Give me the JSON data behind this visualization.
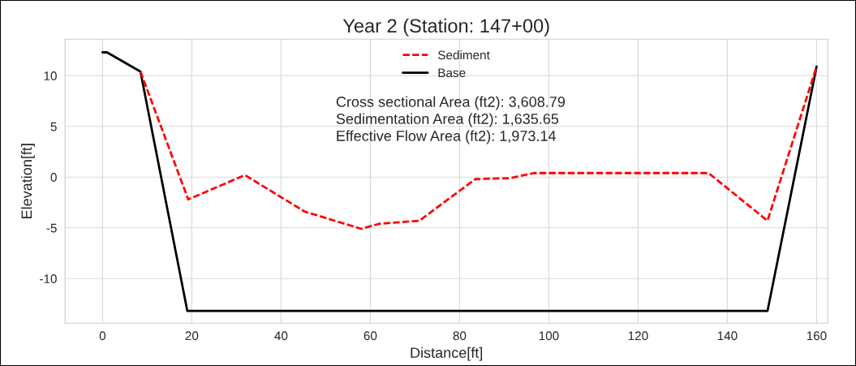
{
  "chart_data": {
    "type": "line",
    "title": "Year 2 (Station: 147+00)",
    "xlabel": "Distance[ft]",
    "ylabel": "Elevation[ft]",
    "series": [
      {
        "name": "Sediment",
        "color": "#ff0000",
        "line_style": "dashed",
        "x": [
          8.5,
          19.2,
          31.9,
          45.3,
          58,
          62,
          71,
          83.5,
          91.3,
          96.7,
          135.8,
          149,
          160
        ],
        "values": [
          10.4,
          -2.2,
          0.2,
          -3.4,
          -5.1,
          -4.6,
          -4.3,
          -0.2,
          -0.1,
          0.4,
          0.4,
          -4.3,
          10.9
        ]
      },
      {
        "name": "Base",
        "color": "#000000",
        "line_style": "solid",
        "x": [
          0,
          1,
          8.5,
          19,
          149,
          160
        ],
        "values": [
          12.3,
          12.3,
          10.4,
          -13.2,
          -13.2,
          10.9
        ]
      }
    ],
    "xlim": [
      -8.4,
      162.5
    ],
    "ylim": [
      -14.4,
      13.6
    ],
    "xticks": [
      0,
      20,
      40,
      60,
      80,
      100,
      120,
      140,
      160
    ],
    "yticks": [
      -10,
      -5,
      0,
      5,
      10
    ],
    "grid": true,
    "legend": "top",
    "marker": "none",
    "annotations": [
      "Cross sectional Area (ft2): 3,608.79",
      "Sedimentation Area (ft2): 1,635.65",
      "Effective Flow Area (ft2): 1,973.14"
    ]
  }
}
